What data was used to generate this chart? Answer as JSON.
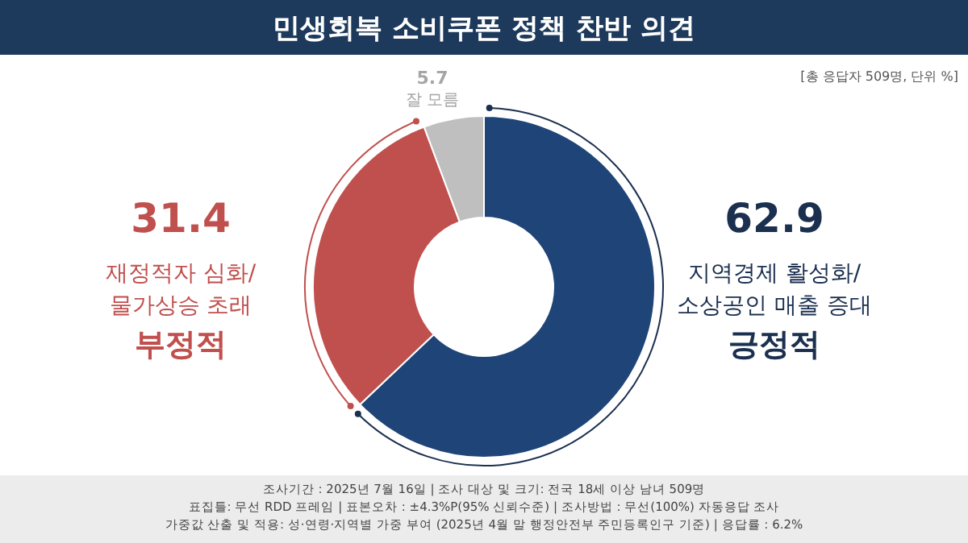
{
  "chart_data": {
    "type": "donut",
    "title": "민생회복 소비쿠폰 정책 찬반 의견",
    "categories": [
      "긍정적",
      "부정적",
      "잘 모름"
    ],
    "values": [
      62.9,
      31.4,
      5.7
    ],
    "colors": [
      "#1f4477",
      "#c0504d",
      "#bfbfbf"
    ],
    "data_labels": true,
    "annotations": [
      "[총 응답자 509명, 단위 %]",
      "지역경제 활성화/",
      "소상공인 매출 증대",
      "재정적자 심화/",
      "물가상승 초래",
      "조사기간 : 2025년 7월 16일 | 조사 대상 및 크기: 전국 18세 이상 남녀 509명",
      "표집틀: 무선 RDD 프레임 | 표본오차 : ±4.3%P(95% 신뢰수준) | 조사방법 : 무선(100%) 자동응답 조사",
      "가중값 산출 및 적용: 성·연령·지역별 가중 부여 (2025년 4월 말 행정안전부 주민등록인구 기준) | 응답률 : 6.2%"
    ]
  }
}
